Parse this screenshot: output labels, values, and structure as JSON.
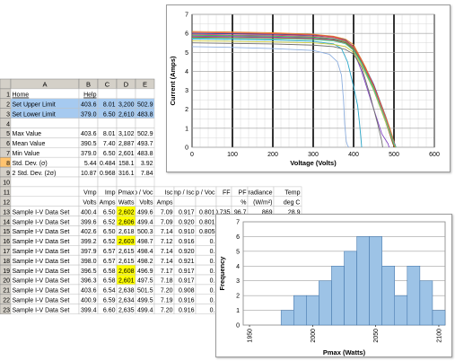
{
  "sheet": {
    "col_headers": [
      "",
      "A",
      "B",
      "C",
      "D",
      "E"
    ],
    "rows": [
      {
        "num": "1",
        "cells": [
          "Home",
          "Help",
          "",
          "",
          ""
        ]
      },
      {
        "num": "2",
        "cells": [
          "Set Upper Limit",
          "403.6",
          "8.01",
          "3,200",
          "502.9"
        ]
      },
      {
        "num": "3",
        "cells": [
          "Set Lower Limit",
          "379.0",
          "6.50",
          "2,610",
          "483.8"
        ]
      },
      {
        "num": "4",
        "cells": [
          "",
          "",
          "",
          "",
          ""
        ]
      },
      {
        "num": "5",
        "cells": [
          "Max Value",
          "403.6",
          "8.01",
          "3,102",
          "502.9"
        ]
      },
      {
        "num": "6",
        "cells": [
          "Mean Value",
          "390.5",
          "7.40",
          "2,887",
          "493.7"
        ]
      },
      {
        "num": "7",
        "cells": [
          "Min Value",
          "379.0",
          "6.50",
          "2,601",
          "483.8"
        ]
      },
      {
        "num": "8",
        "cells": [
          "Std. Dev. (σ)",
          "5.44",
          "0.484",
          "158.1",
          "3.92"
        ]
      },
      {
        "num": "9",
        "cells": [
          "2 Std. Dev. (2σ)",
          "10.87",
          "0.968",
          "316.1",
          "7.84"
        ]
      },
      {
        "num": "10",
        "cells": [
          "",
          "",
          "",
          "",
          ""
        ]
      }
    ],
    "header_row11": {
      "num": "11",
      "cells": [
        "",
        "Vmp",
        "Imp",
        "Pmax",
        "Vmp / Voc",
        "Isc",
        "Imp / Isc",
        "Vmp / Voc",
        "FF",
        "PF",
        "Irradiance",
        "Temp"
      ]
    },
    "header_row12": {
      "num": "12",
      "cells": [
        "",
        "Volts",
        "Amps",
        "Watts",
        "Volts",
        "Amps",
        "",
        "",
        "",
        "%",
        "(W/m²)",
        "deg C"
      ]
    },
    "data_rows": [
      {
        "num": "13",
        "cells": [
          "Sample I-V Data Set",
          "400.4",
          "6.50",
          "2,602",
          "499.6",
          "7.09",
          "0.917",
          "0.801",
          "0.735",
          "96.7",
          "869",
          "28.9"
        ]
      },
      {
        "num": "14",
        "cells": [
          "Sample I-V Data Set",
          "399.6",
          "6.52",
          "2,606",
          "499.4",
          "7.09",
          "0.920",
          "0.801",
          "0.736",
          "96.6",
          "872",
          "28.8"
        ]
      },
      {
        "num": "15",
        "cells": [
          "Sample I-V Data Set",
          "402.6",
          "6.50",
          "2,618",
          "500.3",
          "7.14",
          "0.910",
          "0.805",
          "0.733",
          "97.0",
          "873",
          "28.9"
        ]
      },
      {
        "num": "16",
        "cells": [
          "Sample I-V Data Set",
          "399.2",
          "6.52",
          "2,603",
          "498.7",
          "7.12",
          "0.916",
          "0.",
          "",
          "",
          "",
          ""
        ]
      },
      {
        "num": "17",
        "cells": [
          "Sample I-V Data Set",
          "397.9",
          "6.57",
          "2,615",
          "498.4",
          "7.14",
          "0.920",
          "0.",
          "",
          "",
          "",
          ""
        ]
      },
      {
        "num": "18",
        "cells": [
          "Sample I-V Data Set",
          "398.0",
          "6.57",
          "2,615",
          "498.2",
          "7.14",
          "0.921",
          "0.",
          "",
          "",
          "",
          ""
        ]
      },
      {
        "num": "19",
        "cells": [
          "Sample I-V Data Set",
          "396.5",
          "6.58",
          "2,608",
          "496.9",
          "7.17",
          "0.917",
          "0.",
          "",
          "",
          "",
          ""
        ]
      },
      {
        "num": "20",
        "cells": [
          "Sample I-V Data Set",
          "396.3",
          "6.58",
          "2,601",
          "497.5",
          "7.18",
          "0.917",
          "0.",
          "",
          "",
          "",
          ""
        ]
      },
      {
        "num": "21",
        "cells": [
          "Sample I-V Data Set",
          "403.6",
          "6.54",
          "2,638",
          "501.5",
          "7.20",
          "0.908",
          "0.",
          "",
          "",
          "",
          ""
        ]
      },
      {
        "num": "22",
        "cells": [
          "Sample I-V Data Set",
          "400.9",
          "6.59",
          "2,634",
          "499.5",
          "7.19",
          "0.916",
          "0.",
          "",
          "",
          "",
          ""
        ]
      },
      {
        "num": "23",
        "cells": [
          "Sample I-V Data Set",
          "399.4",
          "6.60",
          "2,635",
          "499.4",
          "7.20",
          "0.916",
          "0.",
          "",
          "",
          "",
          ""
        ]
      }
    ],
    "highlight_pmax_rows": [
      "13",
      "14",
      "16",
      "19",
      "20"
    ],
    "colors": {
      "grid": "#c0c0c0",
      "header_bg": "#d4d0c8",
      "limit_bg": "#a6caf0",
      "selected_row": "#ffc36e",
      "pmax_highlight": "#ffff00",
      "link": "#0000ff"
    }
  },
  "chart_data": [
    {
      "type": "line",
      "title": "",
      "xlabel": "Voltage (Volts)",
      "ylabel": "Current (Amps)",
      "xlim": [
        0,
        600
      ],
      "ylim": [
        0,
        7
      ],
      "x_ticks": [
        "0",
        "100",
        "200",
        "300",
        "400",
        "500",
        "600"
      ],
      "y_ticks": [
        "0",
        "1",
        "2",
        "3",
        "4",
        "5",
        "6",
        "7"
      ],
      "grid": true,
      "series_colors": [
        "#1f3f9f",
        "#d4426f",
        "#3ab54a",
        "#7f3fbf",
        "#e08a2a",
        "#2aa7c9",
        "#9c5a2a",
        "#6d6d6d",
        "#c8c83a",
        "#e04a4a",
        "#46c8a0",
        "#8fb0e0"
      ],
      "series": [
        {
          "x": [
            0,
            100,
            200,
            300,
            350,
            380,
            400,
            420,
            450,
            480,
            500,
            505
          ],
          "y": [
            6.0,
            5.98,
            5.95,
            5.9,
            5.82,
            5.65,
            5.3,
            4.6,
            3.3,
            1.6,
            0.3,
            0
          ]
        },
        {
          "x": [
            0,
            100,
            200,
            300,
            350,
            380,
            400,
            420,
            450,
            480,
            498,
            503
          ],
          "y": [
            5.95,
            5.92,
            5.9,
            5.85,
            5.78,
            5.6,
            5.25,
            4.5,
            3.2,
            1.4,
            0.2,
            0
          ]
        },
        {
          "x": [
            0,
            100,
            200,
            300,
            350,
            380,
            400,
            420,
            450,
            480,
            499,
            504
          ],
          "y": [
            5.9,
            5.88,
            5.85,
            5.8,
            5.72,
            5.55,
            5.2,
            4.45,
            3.1,
            1.3,
            0.2,
            0
          ]
        },
        {
          "x": [
            0,
            100,
            200,
            300,
            350,
            380,
            400,
            420,
            450,
            470,
            485,
            488
          ],
          "y": [
            5.85,
            5.83,
            5.8,
            5.75,
            5.68,
            5.5,
            5.1,
            4.0,
            2.0,
            0.7,
            0.2,
            0
          ]
        },
        {
          "x": [
            0,
            100,
            200,
            300,
            350,
            380,
            400,
            430,
            460,
            490,
            500,
            502
          ],
          "y": [
            6.1,
            6.07,
            6.03,
            5.95,
            5.85,
            5.7,
            5.4,
            4.2,
            2.7,
            1.0,
            0.3,
            0
          ]
        },
        {
          "x": [
            0,
            100,
            200,
            300,
            350,
            370,
            385,
            400,
            410,
            415,
            418,
            420
          ],
          "y": [
            5.7,
            5.68,
            5.65,
            5.58,
            5.45,
            5.2,
            4.5,
            3.2,
            2.2,
            1.2,
            0.5,
            0
          ]
        },
        {
          "x": [
            0,
            100,
            200,
            300,
            350,
            380,
            400,
            420,
            450,
            480,
            497,
            501
          ],
          "y": [
            5.8,
            5.78,
            5.76,
            5.72,
            5.65,
            5.5,
            5.15,
            4.4,
            3.0,
            1.3,
            0.2,
            0
          ]
        },
        {
          "x": [
            0,
            100,
            200,
            300,
            350,
            380,
            400,
            420,
            440,
            460,
            470,
            472
          ],
          "y": [
            5.5,
            5.47,
            5.44,
            5.38,
            5.3,
            5.15,
            4.9,
            4.2,
            2.8,
            1.2,
            0.3,
            0
          ]
        },
        {
          "x": [
            0,
            100,
            200,
            300,
            350,
            380,
            400,
            420,
            450,
            480,
            500,
            504
          ],
          "y": [
            5.6,
            5.58,
            5.55,
            5.5,
            5.42,
            5.3,
            5.0,
            4.3,
            3.0,
            1.3,
            0.2,
            0
          ]
        },
        {
          "x": [
            0,
            100,
            200,
            300,
            350,
            380,
            400,
            420,
            450,
            480,
            500,
            505
          ],
          "y": [
            6.05,
            6.02,
            5.98,
            5.92,
            5.82,
            5.62,
            5.3,
            4.55,
            3.25,
            1.5,
            0.25,
            0
          ]
        },
        {
          "x": [
            0,
            100,
            200,
            300,
            350,
            380,
            400,
            420,
            450,
            480,
            500,
            505
          ],
          "y": [
            5.75,
            5.73,
            5.7,
            5.66,
            5.6,
            5.45,
            5.1,
            4.4,
            3.05,
            1.4,
            0.2,
            0
          ]
        },
        {
          "x": [
            0,
            100,
            200,
            300,
            340,
            360,
            370,
            375,
            378,
            382,
            385,
            388
          ],
          "y": [
            5.3,
            5.26,
            5.2,
            5.1,
            4.9,
            4.5,
            3.8,
            2.5,
            1.2,
            0.3,
            0.1,
            0
          ]
        }
      ]
    },
    {
      "type": "bar",
      "title": "",
      "xlabel": "Pmax (Watts)",
      "ylabel": "Frequency",
      "ylim": [
        0,
        7
      ],
      "y_ticks": [
        "0",
        "1",
        "2",
        "3",
        "4",
        "5",
        "6",
        "7"
      ],
      "x_tick_labels": [
        "1950",
        "2000",
        "2050",
        "2100"
      ],
      "x_tick_values": [
        1950,
        2000,
        2050,
        2100
      ],
      "xlim": [
        1945,
        2105
      ],
      "bin_width": 10,
      "bin_starts": [
        1955,
        1965,
        1975,
        1985,
        1995,
        2005,
        2015,
        2025,
        2035,
        2045,
        2055,
        2065,
        2075,
        2085,
        2095
      ],
      "values": [
        0,
        0,
        1,
        2,
        2,
        3,
        4,
        5,
        6,
        6,
        4,
        2,
        4,
        3,
        1
      ],
      "bar_color": "#9dc3e6",
      "grid": true
    }
  ]
}
